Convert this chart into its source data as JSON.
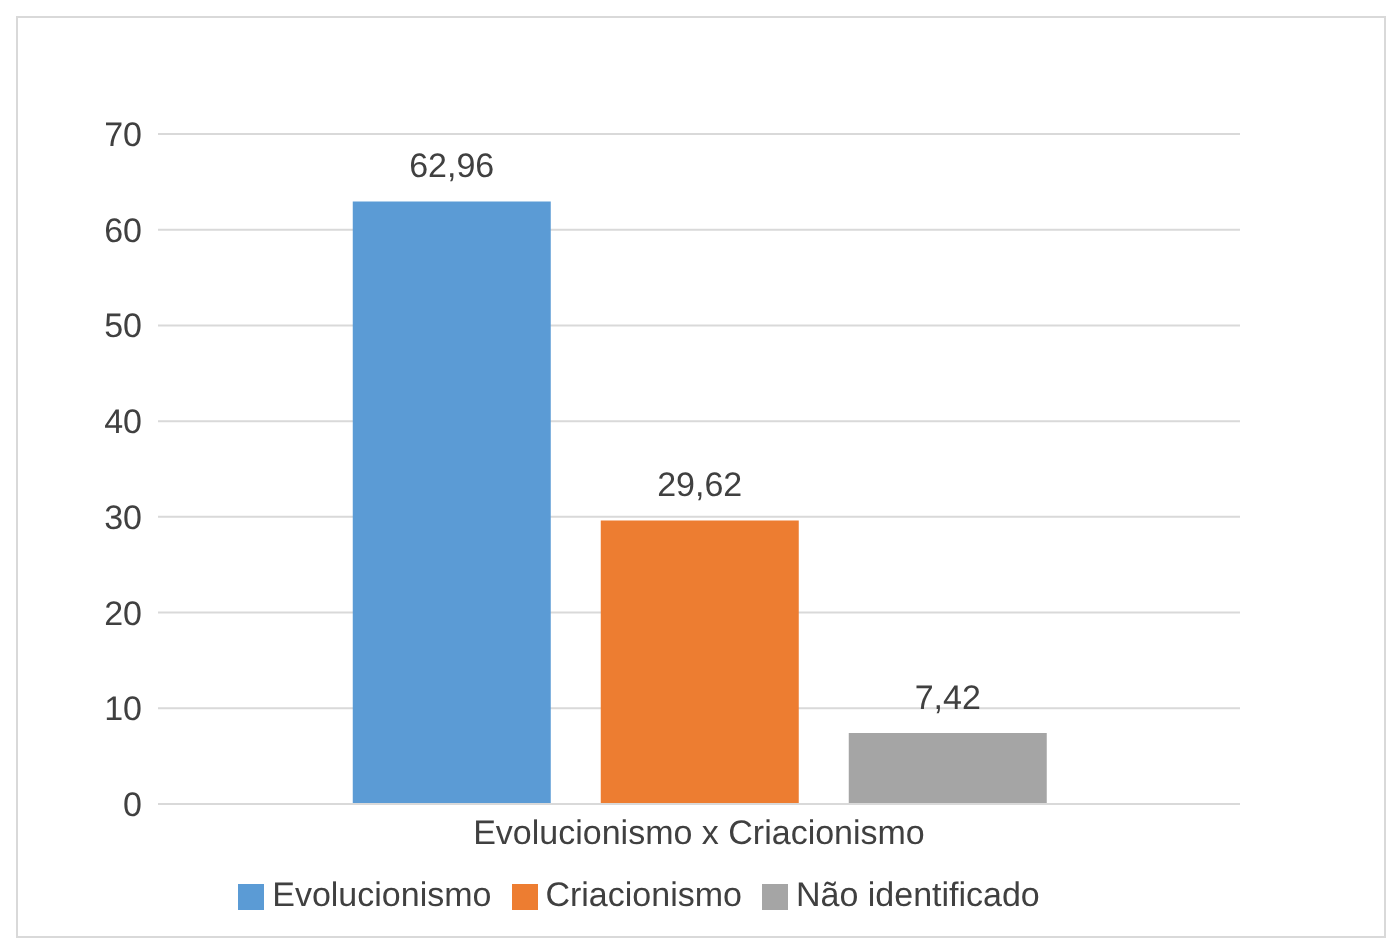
{
  "chart_data": {
    "type": "bar",
    "categories": [
      "Evolucionismo x Criacionismo"
    ],
    "series": [
      {
        "name": "Evolucionismo",
        "color": "#5b9bd5",
        "values": [
          62.96
        ],
        "value_labels": [
          "62,96"
        ]
      },
      {
        "name": "Criacionismo",
        "color": "#ed7d31",
        "values": [
          29.62
        ],
        "value_labels": [
          "29,62"
        ]
      },
      {
        "name": "Não identificado",
        "color": "#a5a5a5",
        "values": [
          7.42
        ],
        "value_labels": [
          "7,42"
        ]
      }
    ],
    "ylim": [
      0,
      70
    ],
    "yticks": [
      0,
      10,
      20,
      30,
      40,
      50,
      60,
      70
    ],
    "grid": "y",
    "legend": "bottom"
  }
}
